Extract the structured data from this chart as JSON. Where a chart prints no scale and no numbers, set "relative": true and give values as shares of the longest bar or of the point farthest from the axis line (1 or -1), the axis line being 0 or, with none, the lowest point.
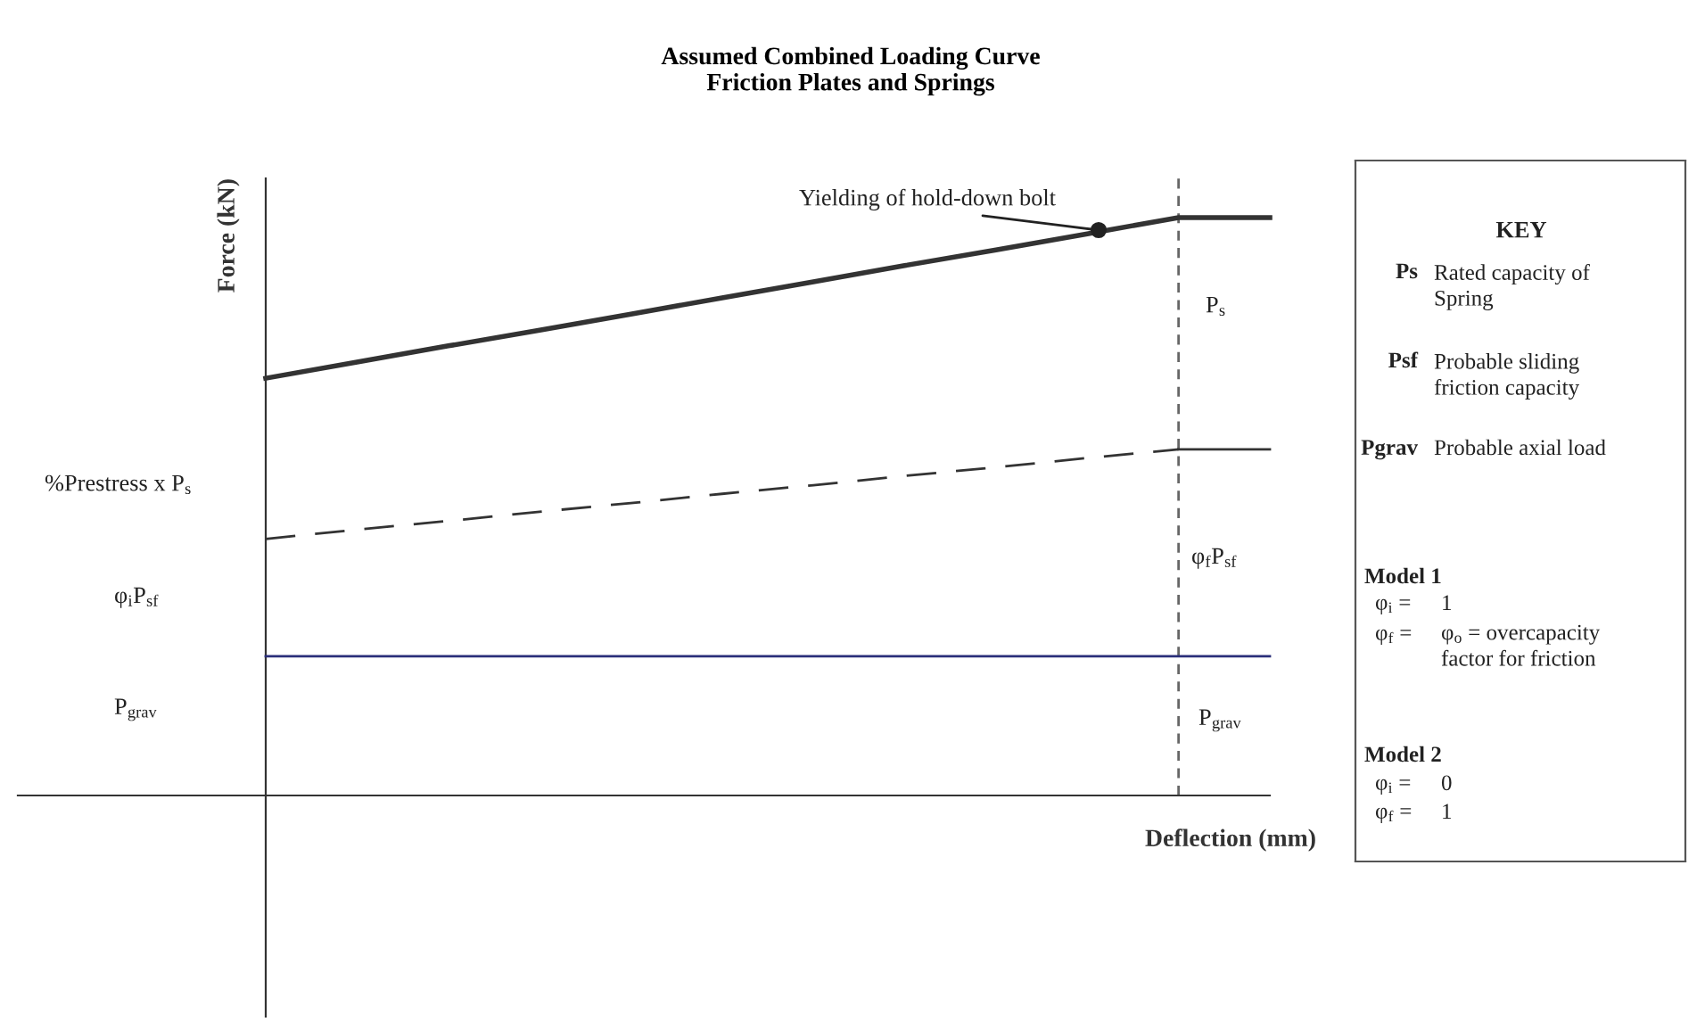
{
  "chart_data": [
    {
      "type": "line",
      "relative": true,
      "title": "Assumed Combined Loading Curve\nFriction Plates and Springs",
      "xlabel": "Deflection (mm)",
      "ylabel": "Force (kN)",
      "categories": [
        null,
        null,
        null,
        null,
        null,
        null,
        null,
        null,
        null,
        null,
        null,
        null
      ],
      "series": [
        {
          "color": "#333333",
          "line_style": "solid",
          "values": [
            0.722,
            0.75,
            0.778,
            0.805,
            0.833,
            0.861,
            0.889,
            0.917,
            0.944,
            0.972,
            1,
            1
          ]
        },
        {
          "color": "#333333",
          "line_style": "dashed",
          "values": [
            0.444,
            0.46,
            0.475,
            0.491,
            0.506,
            0.522,
            0.537,
            0.553,
            0.568,
            0.584,
            0.599,
            null
          ]
        },
        {
          "color": "#333333",
          "line_style": "solid",
          "values": [
            null,
            null,
            null,
            null,
            null,
            null,
            null,
            null,
            null,
            null,
            0.599,
            0.599
          ]
        },
        {
          "color": "#2b2f7a",
          "line_style": "solid",
          "values": [
            0.241,
            0.241,
            0.241,
            0.241,
            0.241,
            0.241,
            0.241,
            0.241,
            0.241,
            0.241,
            0.241,
            0.241
          ]
        }
      ],
      "annotations": [
        "Yielding of hold-down bolt",
        "%Prestress x P$_{s}$",
        "φ$_{i}$P$_{sf}$",
        "P$_{grav}$",
        "P$_{s}$",
        "φ$_{f}$P$_{sf}$",
        "P$_{grav}$"
      ]
    },
    {
      "type": "other",
      "title": "KEY",
      "annotations": [
        "Ps",
        "Rated capacity of\nSpring",
        "Psf",
        "Probable sliding\nfriction capacity",
        "Pgrav",
        "Probable axial load",
        "Model 1",
        "φ$_{i}$ =",
        "1",
        "φ$_{f}$ =",
        "φ$_{o}$ = overcapacity\nfactor for friction",
        "Model 2",
        "φ$_{i}$ =",
        "0",
        "φ$_{f}$ =",
        "1"
      ]
    }
  ]
}
